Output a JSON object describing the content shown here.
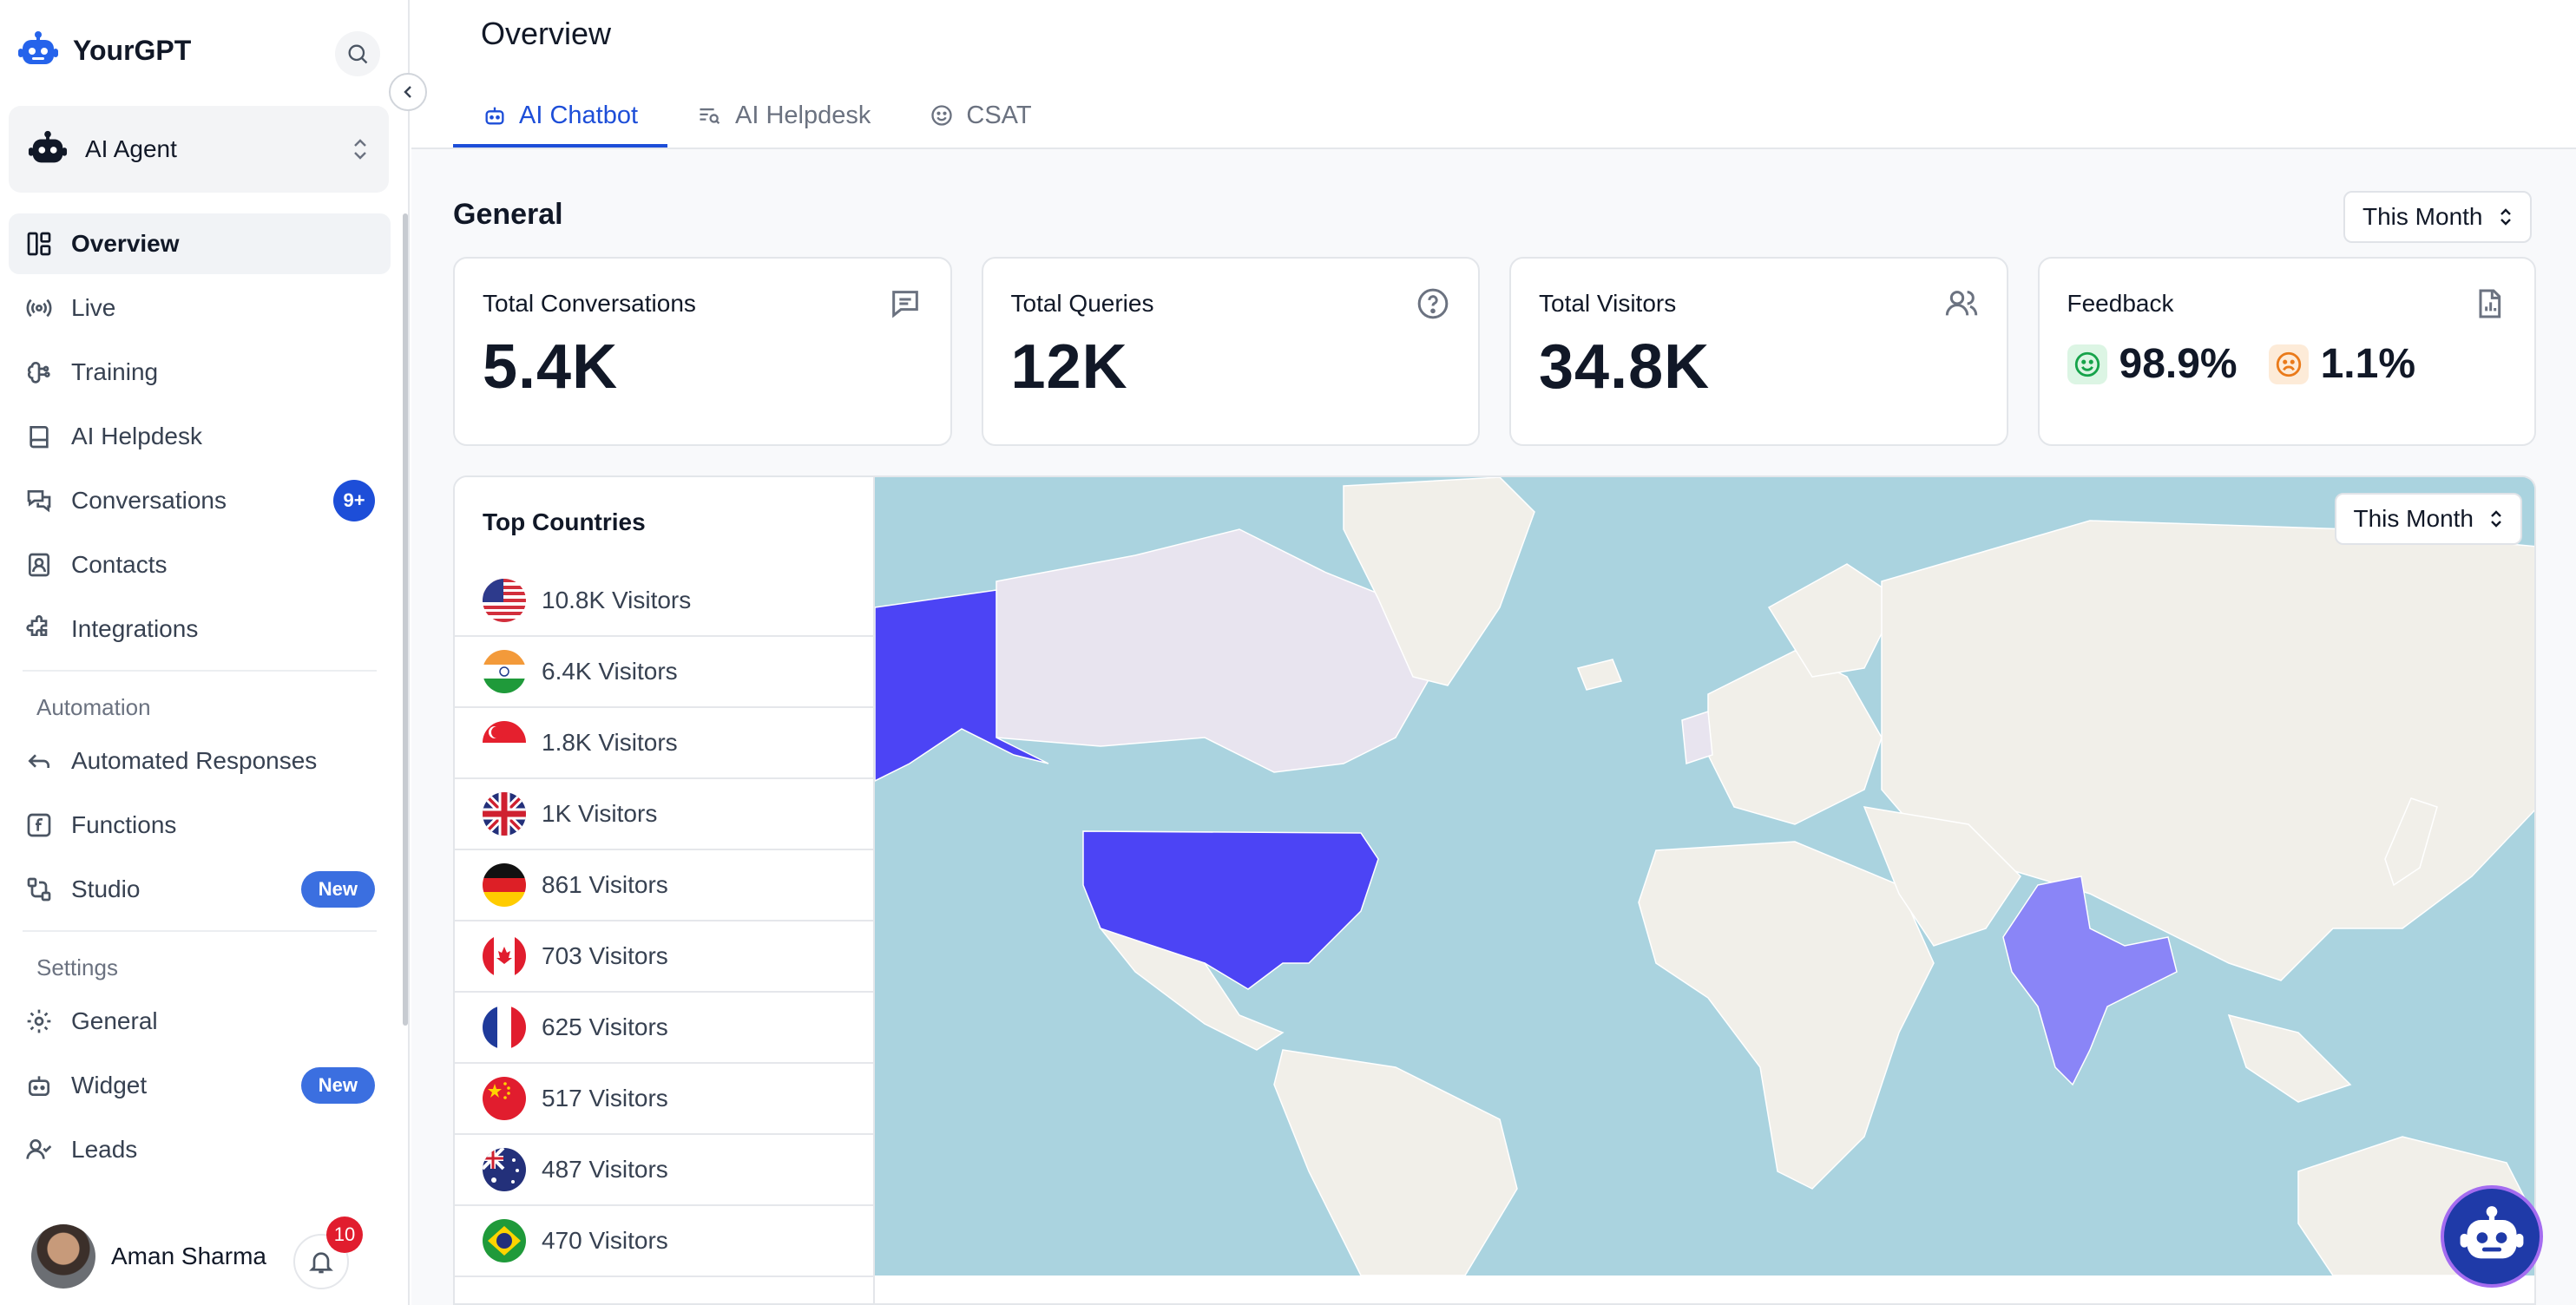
{
  "brand": {
    "name": "YourGPT"
  },
  "agent_selector": {
    "label": "AI Agent"
  },
  "sidebar": {
    "items": [
      {
        "label": "Overview"
      },
      {
        "label": "Live"
      },
      {
        "label": "Training"
      },
      {
        "label": "AI Helpdesk"
      },
      {
        "label": "Conversations",
        "badge": "9+"
      },
      {
        "label": "Contacts"
      },
      {
        "label": "Integrations"
      }
    ],
    "automation_label": "Automation",
    "automation_items": [
      {
        "label": "Automated Responses"
      },
      {
        "label": "Functions"
      },
      {
        "label": "Studio",
        "badge": "New"
      }
    ],
    "settings_label": "Settings",
    "settings_items": [
      {
        "label": "General"
      },
      {
        "label": "Widget",
        "badge": "New"
      },
      {
        "label": "Leads"
      }
    ]
  },
  "user": {
    "name": "Aman Sharma",
    "notifications": "10"
  },
  "header": {
    "title": "Overview",
    "tabs": [
      {
        "label": "AI Chatbot",
        "active": true
      },
      {
        "label": "AI Helpdesk",
        "active": false
      },
      {
        "label": "CSAT",
        "active": false
      }
    ]
  },
  "general": {
    "title": "General",
    "period": "This Month",
    "cards": [
      {
        "label": "Total Conversations",
        "value": "5.4K",
        "icon": "message-icon"
      },
      {
        "label": "Total Queries",
        "value": "12K",
        "icon": "help-circle-icon"
      },
      {
        "label": "Total Visitors",
        "value": "34.8K",
        "icon": "users-icon"
      }
    ],
    "feedback": {
      "label": "Feedback",
      "positive": "98.9%",
      "negative": "1.1%",
      "icon": "report-icon"
    }
  },
  "top_countries": {
    "title": "Top Countries",
    "period": "This Month",
    "rows": [
      {
        "visitors": "10.8K Visitors",
        "flag": "us-flag"
      },
      {
        "visitors": "6.4K Visitors",
        "flag": "in-flag"
      },
      {
        "visitors": "1.8K Visitors",
        "flag": "sg-flag"
      },
      {
        "visitors": "1K Visitors",
        "flag": "gb-flag"
      },
      {
        "visitors": "861 Visitors",
        "flag": "de-flag"
      },
      {
        "visitors": "703 Visitors",
        "flag": "ca-flag"
      },
      {
        "visitors": "625 Visitors",
        "flag": "fr-flag"
      },
      {
        "visitors": "517 Visitors",
        "flag": "cn-flag"
      },
      {
        "visitors": "487 Visitors",
        "flag": "au-flag"
      },
      {
        "visitors": "470 Visitors",
        "flag": "br-flag"
      }
    ]
  },
  "colors": {
    "accent": "#1d4ed8",
    "map_water": "#aad3df",
    "map_highlight_strong": "#4c44f5",
    "map_highlight_medium": "#8a85f7",
    "map_land": "#f1efe9"
  }
}
